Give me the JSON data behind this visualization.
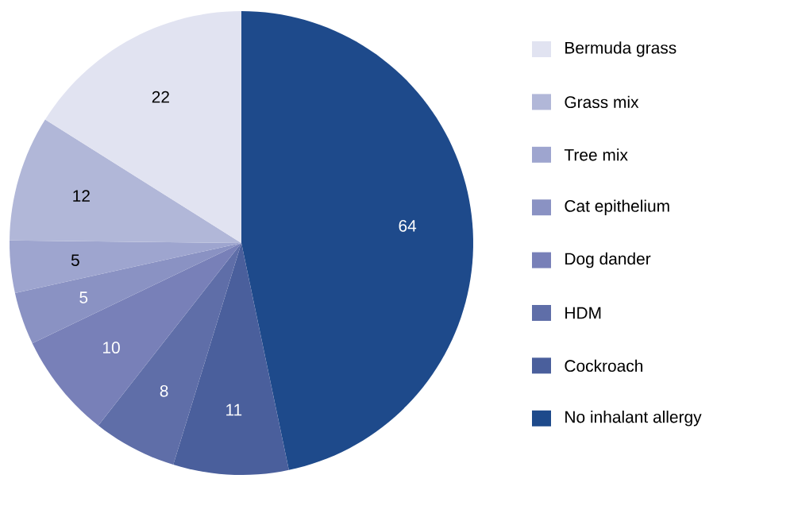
{
  "chart_data": {
    "type": "pie",
    "categories": [
      "Bermuda grass",
      "Grass mix",
      "Tree mix",
      "Cat epithelium",
      "Dog dander",
      "HDM",
      "Cockroach",
      "No inhalant allergy"
    ],
    "values": [
      22,
      12,
      5,
      5,
      10,
      8,
      11,
      64
    ],
    "colors": [
      "#e1e3f1",
      "#b1b7d8",
      "#9ea5cf",
      "#8a92c3",
      "#7880b8",
      "#5f6ea8",
      "#4a5f9c",
      "#1e4a8b"
    ],
    "data_labels": true,
    "legend": "right"
  }
}
